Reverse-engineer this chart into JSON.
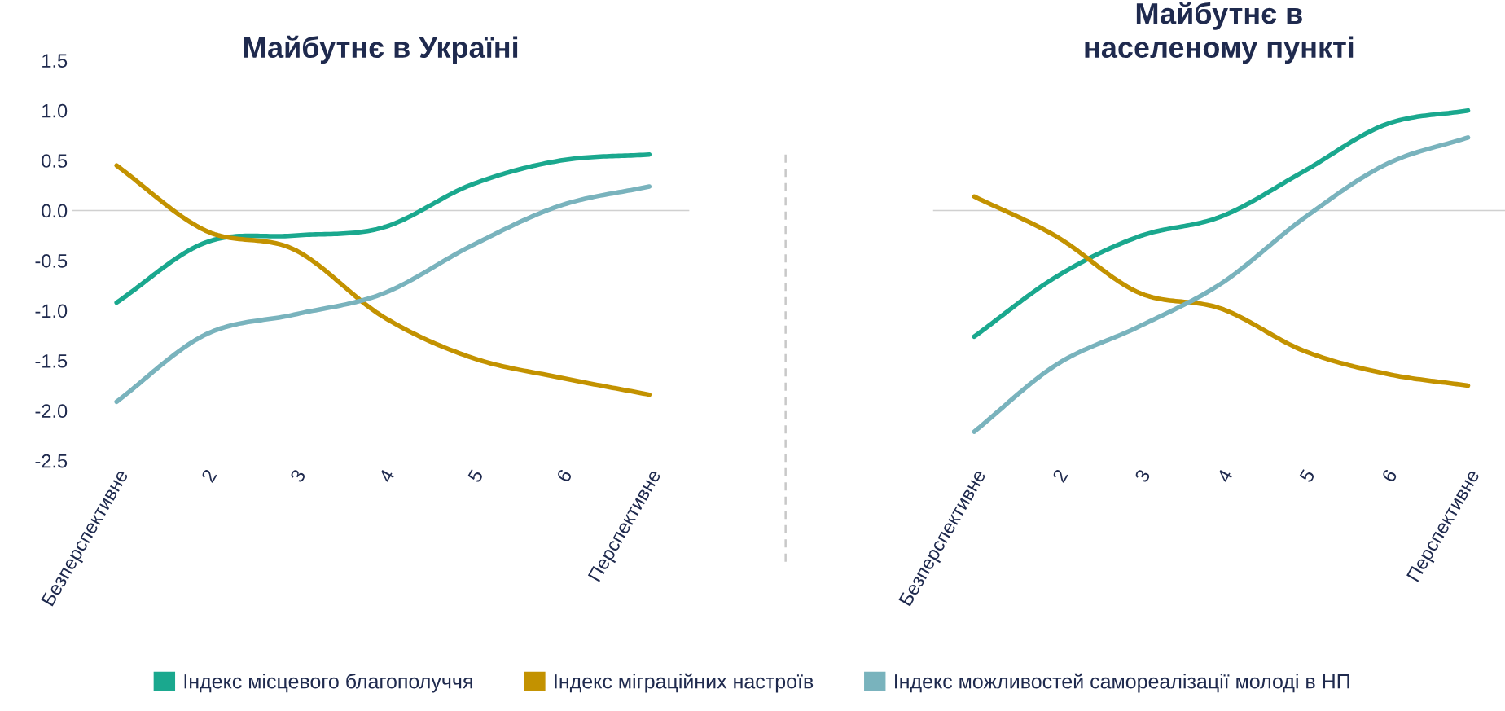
{
  "chart_data": [
    {
      "type": "line",
      "title": "Майбутнє в Україні",
      "categories": [
        "Безперспективне",
        "2",
        "3",
        "4",
        "5",
        "6",
        "Перспективне"
      ],
      "ylim": [
        -2.5,
        1.5
      ],
      "yticks": [
        {
          "value": -2.5,
          "label": "-2.5"
        },
        {
          "value": -2,
          "label": "-2.0"
        },
        {
          "value": -1.5,
          "label": "-1.5"
        },
        {
          "value": -1,
          "label": "-1.0"
        },
        {
          "value": -0.5,
          "label": "-0.5"
        },
        {
          "value": 0,
          "label": "0.0"
        },
        {
          "value": 0.5,
          "label": "0.5"
        },
        {
          "value": 1,
          "label": "1.0"
        },
        {
          "value": 1.5,
          "label": "1.5"
        }
      ],
      "grid": false,
      "legend": "bottom",
      "marker": "none",
      "line_style": "solid",
      "ref_lines": [
        {
          "axis": "y",
          "value": 0,
          "color": "#d0d0d0"
        }
      ],
      "series": [
        {
          "name": "Індекс місцевого благополуччя",
          "color": "#1aa88e",
          "values": [
            -0.92,
            -0.32,
            -0.25,
            -0.17,
            0.26,
            0.5,
            0.56
          ]
        },
        {
          "name": "Індекс міграційних настроїв",
          "color": "#c39200",
          "values": [
            0.45,
            -0.2,
            -0.39,
            -1.06,
            -1.47,
            -1.67,
            -1.84
          ]
        },
        {
          "name": "Індекс можливостей самореалізації молоді в НП",
          "color": "#79b3bd",
          "values": [
            -1.91,
            -1.24,
            -1.04,
            -0.83,
            -0.35,
            0.05,
            0.24
          ]
        }
      ]
    },
    {
      "type": "line",
      "title": "Майбутнє в\nнаселеному пункті",
      "categories": [
        "Безперспективне",
        "2",
        "3",
        "4",
        "5",
        "6",
        "Перспективне"
      ],
      "ylim": [
        -2.5,
        1.5
      ],
      "tick_labels": "x",
      "grid": false,
      "marker": "none",
      "line_style": "solid",
      "ref_lines": [
        {
          "axis": "y",
          "value": 0,
          "color": "#d0d0d0"
        }
      ],
      "series": [
        {
          "color": "#1aa88e",
          "values": [
            -1.26,
            -0.66,
            -0.26,
            -0.06,
            0.39,
            0.86,
            1.0
          ]
        },
        {
          "color": "#c39200",
          "values": [
            0.14,
            -0.26,
            -0.82,
            -0.98,
            -1.4,
            -1.63,
            -1.75
          ]
        },
        {
          "color": "#79b3bd",
          "values": [
            -2.21,
            -1.54,
            -1.16,
            -0.73,
            -0.08,
            0.46,
            0.73
          ]
        }
      ]
    }
  ]
}
